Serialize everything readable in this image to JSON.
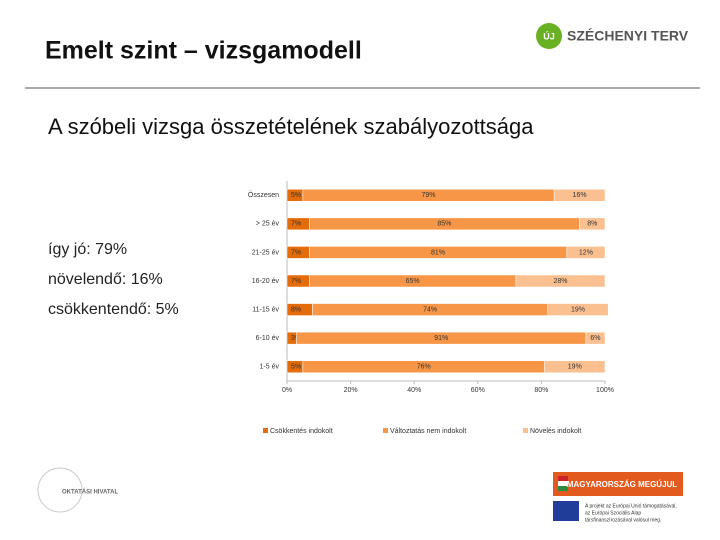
{
  "header": {
    "title": "Emelt szint – vizsgamodell",
    "subtitle": "A szóbeli vizsga összetételének szabályozottsága",
    "logo_mark": "ÚJ",
    "logo": "SZÉCHENYI TERV"
  },
  "side_notes": [
    "így jó: 79%",
    "növelendő: 16%",
    "csökkentendő: 5%"
  ],
  "footer": {
    "office": "OKTATÁSI HIVATAL",
    "banner": "MAGYARORSZÁG MEGÚJUL",
    "eu_note": [
      "A projekt az Európai Unió támogatásával,",
      "az Európai Szociális Alap",
      "társfinanszírozásával valósul meg."
    ]
  },
  "chart_data": {
    "type": "stacked-barh",
    "categories": [
      "Összesen",
      "> 25 év",
      "21-25 év",
      "16-20 év",
      "11-15 év",
      "6-10 év",
      "1-5 év"
    ],
    "series": [
      {
        "name": "Csökkentés indokolt",
        "color": "#e46c0a",
        "values": [
          5,
          7,
          7,
          7,
          8,
          3,
          5
        ],
        "value_labels": [
          "5%",
          "7%",
          "7%",
          "7%",
          "8%",
          "3%",
          "5%"
        ]
      },
      {
        "name": "Változtatás nem indokolt",
        "color": "#f79646",
        "values": [
          79,
          85,
          81,
          65,
          74,
          91,
          76
        ],
        "value_labels": [
          "79%",
          "85%",
          "81%",
          "65%",
          "74%",
          "91%",
          "76%"
        ]
      },
      {
        "name": "Növelés indokolt",
        "color": "#fac090",
        "values": [
          16,
          8,
          12,
          28,
          19,
          6,
          19
        ],
        "value_labels": [
          "16%",
          "8%",
          "12%",
          "28%",
          "19%",
          "6%",
          "19%"
        ]
      }
    ],
    "xlim": [
      0,
      100
    ],
    "xticks": [
      {
        "value": 0,
        "label": "0%"
      },
      {
        "value": 20,
        "label": "20%"
      },
      {
        "value": 40,
        "label": "40%"
      },
      {
        "value": 60,
        "label": "60%"
      },
      {
        "value": 80,
        "label": "80%"
      },
      {
        "value": 100,
        "label": "100%"
      }
    ],
    "legend": "bottom"
  }
}
